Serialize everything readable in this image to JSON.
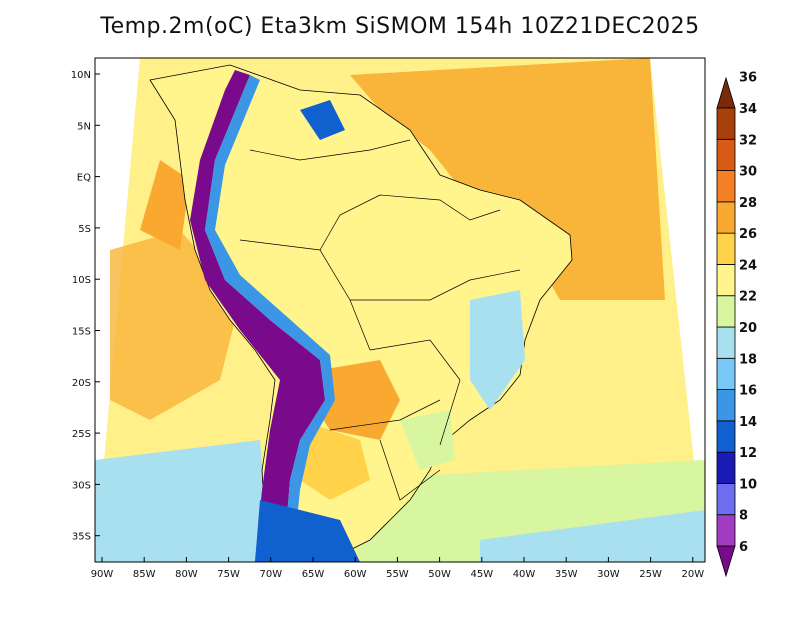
{
  "title": "Temp.2m(oC) Eta3km SiSMOM 154h 10Z21DEC2025",
  "lat_labels": [
    "10N",
    "5N",
    "EQ",
    "5S",
    "10S",
    "15S",
    "20S",
    "25S",
    "30S",
    "35S"
  ],
  "lon_labels": [
    "90W",
    "85W",
    "80W",
    "75W",
    "70W",
    "65W",
    "60W",
    "55W",
    "50W",
    "45W",
    "40W",
    "35W",
    "30W",
    "25W",
    "20W"
  ],
  "colorbar": {
    "levels": [
      "6",
      "8",
      "10",
      "12",
      "14",
      "16",
      "18",
      "20",
      "22",
      "24",
      "26",
      "28",
      "30",
      "32",
      "34",
      "36"
    ],
    "colors": [
      "#7a0a8c",
      "#a23dc2",
      "#6e6ef0",
      "#1a1ab4",
      "#1060d0",
      "#3c96e6",
      "#78c8f5",
      "#a8e0f0",
      "#d8f5a0",
      "#fff58c",
      "#ffd24a",
      "#f9a830",
      "#f57f25",
      "#d85a14",
      "#a8400c",
      "#7a2a0a"
    ]
  },
  "colors": {
    "ocean": "#ffe27a",
    "land": "#fff58c",
    "border": "#000000"
  }
}
